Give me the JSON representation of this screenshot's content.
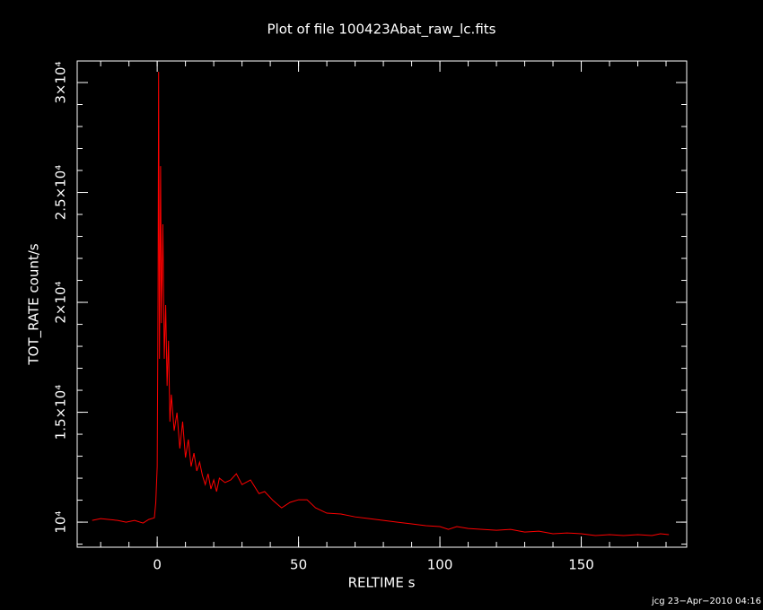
{
  "chart_data": {
    "type": "line",
    "title": "Plot of file 100423Abat_raw_lc.fits",
    "x_label": "RELTIME  s",
    "y_label": "TOT_RATE  count/s",
    "footer": "jcg 23−Apr−2010 04:16",
    "xlim": [
      -28.3,
      187.3
    ],
    "ylim": [
      8860,
      30980
    ],
    "xticks": [
      0,
      50,
      100,
      150
    ],
    "yticks": [
      {
        "value": 10000,
        "label": "10⁴"
      },
      {
        "value": 15000,
        "label": "1.5×10⁴"
      },
      {
        "value": 20000,
        "label": "2×10⁴"
      },
      {
        "value": 25000,
        "label": "2.5×10⁴"
      },
      {
        "value": 30000,
        "label": "3×10⁴"
      }
    ],
    "background": "#000000",
    "axis_color": "#ffffff",
    "series": [
      {
        "color": "#ff0000",
        "x": [
          -23,
          -20,
          -17,
          -14,
          -11,
          -8,
          -5,
          -3,
          -1,
          -0.5,
          0,
          0.3,
          0.5,
          0.8,
          1.2,
          1.5,
          2,
          2.5,
          3,
          3.5,
          4,
          4.5,
          5,
          6,
          7,
          8,
          9,
          10,
          11,
          12,
          13,
          14,
          15,
          16,
          17,
          18,
          19,
          20,
          21,
          22,
          24,
          26,
          28,
          30,
          33,
          36,
          38,
          41,
          44,
          47,
          50,
          53,
          56,
          60,
          65,
          70,
          75,
          80,
          85,
          90,
          95,
          100,
          103,
          106,
          110,
          115,
          120,
          125,
          130,
          135,
          140,
          145,
          150,
          155,
          160,
          165,
          170,
          175,
          178,
          181
        ],
        "values": [
          10080,
          10160,
          10120,
          10080,
          10000,
          10080,
          9960,
          10120,
          10200,
          10900,
          12530,
          20290,
          30490,
          17430,
          26200,
          19060,
          23550,
          17430,
          19880,
          16200,
          18250,
          14570,
          15800,
          14160,
          14980,
          13350,
          14570,
          12940,
          13760,
          12530,
          13140,
          12330,
          12730,
          12120,
          11710,
          12200,
          11510,
          11920,
          11390,
          12000,
          11800,
          11920,
          12200,
          11710,
          11920,
          11300,
          11390,
          10980,
          10650,
          10900,
          11020,
          11020,
          10650,
          10410,
          10370,
          10240,
          10160,
          10080,
          10000,
          9920,
          9840,
          9800,
          9670,
          9800,
          9710,
          9670,
          9630,
          9670,
          9550,
          9590,
          9470,
          9510,
          9470,
          9390,
          9430,
          9390,
          9430,
          9390,
          9470,
          9430
        ]
      }
    ]
  }
}
